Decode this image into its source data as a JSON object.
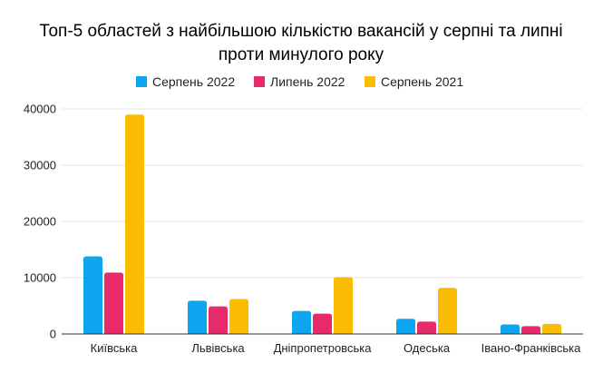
{
  "chart_data": {
    "type": "bar",
    "title_lines": [
      "Топ-5 областей з найбільшою кількістю вакансій у серпні та липні",
      "проти минулого року"
    ],
    "categories": [
      "Київська",
      "Львівська",
      "Дніпропетровська",
      "Одеська",
      "Івано-Франківська"
    ],
    "series": [
      {
        "name": "Серпень 2022",
        "color": "#0ea5f0",
        "values": [
          13800,
          5900,
          4100,
          2700,
          1700
        ]
      },
      {
        "name": "Липень 2022",
        "color": "#e62a6b",
        "values": [
          10900,
          4900,
          3600,
          2200,
          1400
        ]
      },
      {
        "name": "Серпень 2021",
        "color": "#fbbc04",
        "values": [
          39000,
          6200,
          10100,
          8200,
          1800
        ]
      }
    ],
    "y_ticks": [
      "0",
      "10000",
      "20000",
      "30000",
      "40000"
    ],
    "ylim": [
      0,
      40000
    ],
    "grid": true,
    "legend_position": "top-center"
  }
}
